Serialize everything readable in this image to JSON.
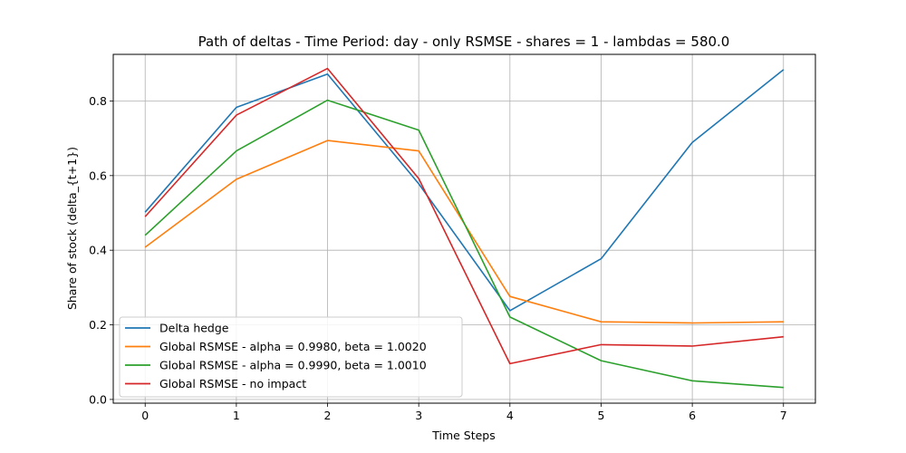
{
  "chart_data": {
    "type": "line",
    "title": "Path of deltas - Time Period: day - only RSMSE - shares = 1 - lambdas = 580.0",
    "xlabel": "Time Steps",
    "ylabel": "Share of stock (delta_{t+1})",
    "x": [
      0,
      1,
      2,
      3,
      4,
      5,
      6,
      7
    ],
    "xlim": [
      -0.35,
      7.35
    ],
    "ylim": [
      -0.01,
      0.925
    ],
    "xticks": [
      0,
      1,
      2,
      3,
      4,
      5,
      6,
      7
    ],
    "yticks": [
      0.0,
      0.2,
      0.4,
      0.6,
      0.8
    ],
    "ytick_labels": [
      "0.0",
      "0.2",
      "0.4",
      "0.6",
      "0.8"
    ],
    "grid": true,
    "legend_position": "lower-left",
    "series": [
      {
        "name": "Delta hedge",
        "color": "#1f77b4",
        "values": [
          0.502,
          0.783,
          0.872,
          0.578,
          0.238,
          0.377,
          0.689,
          0.884
        ]
      },
      {
        "name": "Global RSMSE - alpha = 0.9980, beta = 1.0020",
        "color": "#ff7f0e",
        "values": [
          0.408,
          0.59,
          0.694,
          0.666,
          0.276,
          0.208,
          0.205,
          0.208
        ]
      },
      {
        "name": "Global RSMSE - alpha = 0.9990, beta = 1.0010",
        "color": "#2ca02c",
        "values": [
          0.44,
          0.666,
          0.802,
          0.722,
          0.221,
          0.104,
          0.05,
          0.032
        ]
      },
      {
        "name": "Global RSMSE - no impact",
        "color": "#d62728",
        "values": [
          0.49,
          0.762,
          0.887,
          0.592,
          0.096,
          0.147,
          0.143,
          0.168
        ]
      }
    ]
  }
}
